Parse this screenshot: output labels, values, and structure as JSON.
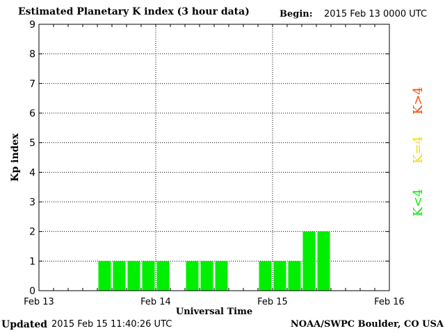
{
  "header": {
    "title": "Estimated Planetary K index (3 hour data)",
    "begin_label": "Begin:",
    "begin_value": "2015 Feb 13 0000 UTC"
  },
  "footer": {
    "updated_label": "Updated",
    "updated_value": "2015 Feb 15 11:40:26 UTC",
    "credit": "NOAA/SWPC Boulder, CO USA"
  },
  "legend": [
    {
      "label": "K<4",
      "color": "#00ee00"
    },
    {
      "label": "K=4",
      "color": "#ffd700"
    },
    {
      "label": "K>4",
      "color": "#ff4500"
    }
  ],
  "chart_data": {
    "type": "bar",
    "title": "Estimated Planetary K index (3 hour data)",
    "xlabel": "Universal Time",
    "ylabel": "Kp index",
    "ylim": [
      0,
      9
    ],
    "yticks": [
      0,
      1,
      2,
      3,
      4,
      5,
      6,
      7,
      8,
      9
    ],
    "xlim_hours": [
      0,
      72
    ],
    "x_tick_labels": [
      "Feb 13",
      "Feb 14",
      "Feb 15",
      "Feb 16"
    ],
    "x_tick_hours": [
      0,
      24,
      48,
      72
    ],
    "bar_interval_hours": 3,
    "bars": [
      {
        "start_hour": 12,
        "kp": 1
      },
      {
        "start_hour": 15,
        "kp": 1
      },
      {
        "start_hour": 18,
        "kp": 1
      },
      {
        "start_hour": 21,
        "kp": 1
      },
      {
        "start_hour": 24,
        "kp": 1
      },
      {
        "start_hour": 30,
        "kp": 1
      },
      {
        "start_hour": 33,
        "kp": 1
      },
      {
        "start_hour": 36,
        "kp": 1
      },
      {
        "start_hour": 45,
        "kp": 1
      },
      {
        "start_hour": 48,
        "kp": 1
      },
      {
        "start_hour": 51,
        "kp": 1
      },
      {
        "start_hour": 54,
        "kp": 2
      },
      {
        "start_hour": 57,
        "kp": 2
      }
    ],
    "grid": true,
    "legend_position": "right"
  }
}
